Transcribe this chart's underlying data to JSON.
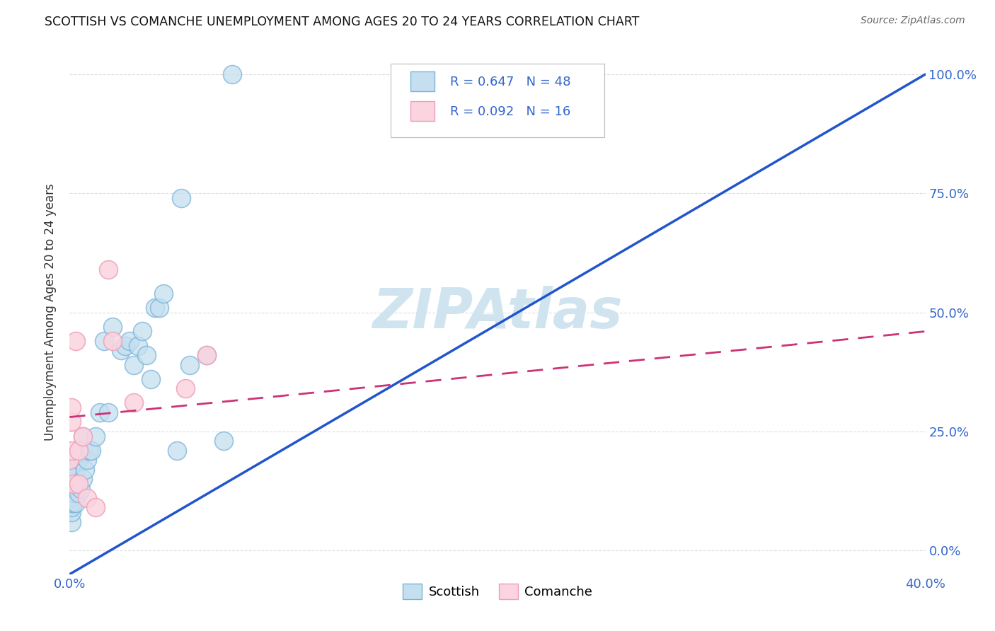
{
  "title": "SCOTTISH VS COMANCHE UNEMPLOYMENT AMONG AGES 20 TO 24 YEARS CORRELATION CHART",
  "source": "Source: ZipAtlas.com",
  "ylabel": "Unemployment Among Ages 20 to 24 years",
  "scottish_R": 0.647,
  "scottish_N": 48,
  "comanche_R": 0.092,
  "comanche_N": 16,
  "scottish_edge_color": "#7ab3d8",
  "scottish_face_color": "#c5dff0",
  "comanche_edge_color": "#f0a0b8",
  "comanche_face_color": "#fbd4e0",
  "trendline_scottish_color": "#2255cc",
  "trendline_comanche_color": "#cc3377",
  "watermark_color": "#d0e4f0",
  "xlim": [
    0.0,
    0.4
  ],
  "ylim": [
    -0.05,
    1.05
  ],
  "x_tick_positions": [
    0.0,
    0.4
  ],
  "x_tick_labels": [
    "0.0%",
    "40.0%"
  ],
  "y_tick_positions": [
    0.0,
    0.25,
    0.5,
    0.75,
    1.0
  ],
  "y_tick_labels": [
    "0.0%",
    "25.0%",
    "50.0%",
    "75.0%",
    "100.0%"
  ],
  "scottish_trend_x": [
    0.0,
    0.4
  ],
  "scottish_trend_y": [
    -0.05,
    1.0
  ],
  "comanche_trend_x": [
    0.0,
    0.4
  ],
  "comanche_trend_y": [
    0.28,
    0.46
  ],
  "scottish_x": [
    0.001,
    0.001,
    0.001,
    0.001,
    0.001,
    0.001,
    0.001,
    0.001,
    0.001,
    0.001,
    0.002,
    0.002,
    0.002,
    0.002,
    0.003,
    0.003,
    0.004,
    0.004,
    0.005,
    0.005,
    0.006,
    0.006,
    0.007,
    0.008,
    0.009,
    0.01,
    0.012,
    0.014,
    0.016,
    0.018,
    0.02,
    0.024,
    0.026,
    0.028,
    0.03,
    0.032,
    0.034,
    0.036,
    0.038,
    0.04,
    0.042,
    0.044,
    0.05,
    0.052,
    0.056,
    0.064,
    0.072,
    0.076
  ],
  "scottish_y": [
    0.06,
    0.08,
    0.09,
    0.1,
    0.11,
    0.12,
    0.14,
    0.15,
    0.16,
    0.17,
    0.1,
    0.12,
    0.14,
    0.17,
    0.1,
    0.17,
    0.12,
    0.19,
    0.13,
    0.2,
    0.15,
    0.24,
    0.17,
    0.19,
    0.21,
    0.21,
    0.24,
    0.29,
    0.44,
    0.29,
    0.47,
    0.42,
    0.43,
    0.44,
    0.39,
    0.43,
    0.46,
    0.41,
    0.36,
    0.51,
    0.51,
    0.54,
    0.21,
    0.74,
    0.39,
    0.41,
    0.23,
    1.0
  ],
  "comanche_x": [
    0.0,
    0.001,
    0.001,
    0.001,
    0.002,
    0.003,
    0.004,
    0.004,
    0.006,
    0.008,
    0.012,
    0.018,
    0.02,
    0.03,
    0.054,
    0.064
  ],
  "comanche_y": [
    0.19,
    0.21,
    0.27,
    0.3,
    0.14,
    0.44,
    0.21,
    0.14,
    0.24,
    0.11,
    0.09,
    0.59,
    0.44,
    0.31,
    0.34,
    0.41
  ],
  "background_color": "#ffffff",
  "grid_color": "#dddddd"
}
